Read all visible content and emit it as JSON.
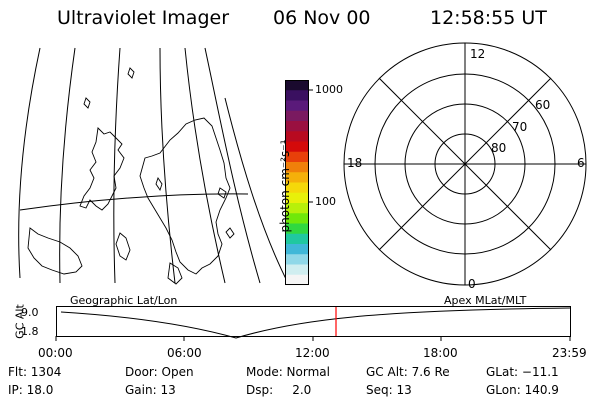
{
  "header": {
    "instrument": "Ultraviolet Imager",
    "date": "06 Nov 00",
    "time": "12:58:55 UT"
  },
  "colorbar": {
    "unit_label": "photon cm⁻²s⁻¹",
    "tick_labels": [
      "1000",
      "100"
    ],
    "colors": [
      "#1a0a2e",
      "#3a1060",
      "#5a1a7a",
      "#7a1a60",
      "#9a1040",
      "#b80a20",
      "#d40a0a",
      "#e8400a",
      "#f0800a",
      "#f5b00a",
      "#f5d80a",
      "#e8f00a",
      "#b8f00a",
      "#70e80a",
      "#30d840",
      "#20c8a0",
      "#40b8d8",
      "#90d8e8",
      "#d0eef0",
      "#f5f5f5"
    ]
  },
  "polar_plot": {
    "hour_labels": [
      "12",
      "18",
      "6",
      "0"
    ],
    "lat_labels": [
      "60",
      "70",
      "80"
    ]
  },
  "timeline": {
    "left_label": "Geographic Lat/Lon",
    "right_label": "Apex MLat/MLT",
    "axis_title": "GC Alt",
    "y_ticks": [
      "9.0",
      "1.8"
    ],
    "time_ticks": [
      "00:00",
      "06:00",
      "12:00",
      "18:00",
      "23:59"
    ],
    "cursor_color": "#ff0000"
  },
  "info": {
    "flt": "Flt: 1304",
    "ip": "IP: 18.0",
    "door": "Door: Open",
    "gain": "Gain: 13",
    "mode": "Mode: Normal",
    "dsp": "Dsp:     2.0",
    "gcalt": "GC Alt: 7.6 Re",
    "seq": "Seq: 13",
    "glat": "GLat: −11.1",
    "glon": "GLon: 140.9"
  }
}
